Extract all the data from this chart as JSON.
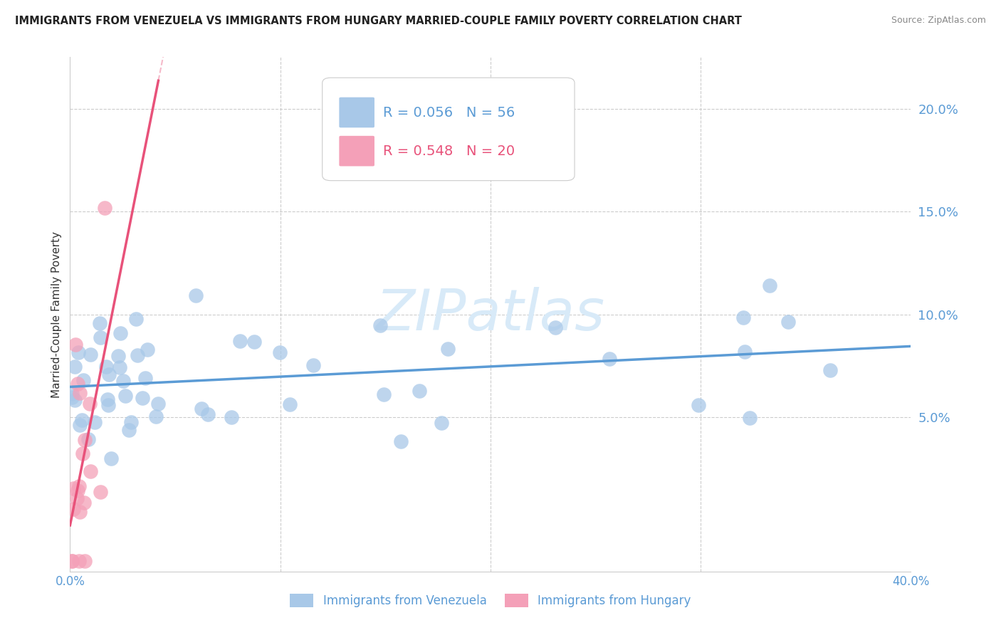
{
  "title": "IMMIGRANTS FROM VENEZUELA VS IMMIGRANTS FROM HUNGARY MARRIED-COUPLE FAMILY POVERTY CORRELATION CHART",
  "source": "Source: ZipAtlas.com",
  "ylabel": "Married-Couple Family Poverty",
  "r_venezuela": 0.056,
  "n_venezuela": 56,
  "r_hungary": 0.548,
  "n_hungary": 20,
  "xlim": [
    0.0,
    0.4
  ],
  "ylim": [
    -0.025,
    0.225
  ],
  "blue_line_color": "#5b9bd5",
  "pink_line_color": "#e8527a",
  "blue_scatter_color": "#a8c8e8",
  "pink_scatter_color": "#f4a0b8",
  "watermark": "ZIPatlas",
  "watermark_color": "#d8eaf8",
  "grid_color": "#cccccc",
  "title_color": "#222222",
  "source_color": "#888888",
  "ylabel_color": "#333333",
  "tick_color": "#5b9bd5"
}
